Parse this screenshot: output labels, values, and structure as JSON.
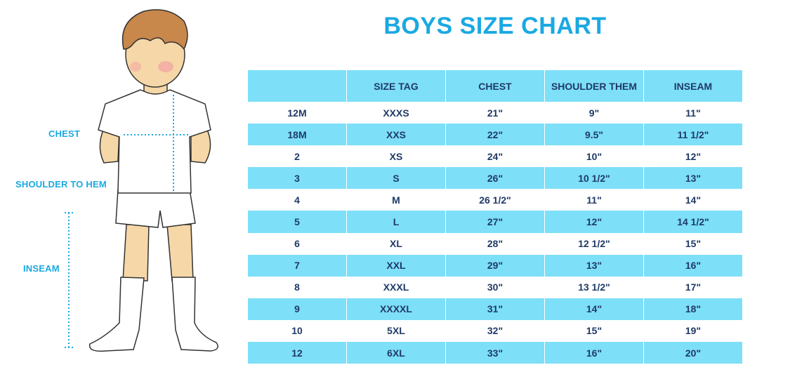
{
  "title": "BOYS SIZE CHART",
  "illustration_labels": {
    "chest": "CHEST",
    "shoulder_to_hem": "SHOULDER TO HEM",
    "inseam": "INSEAM"
  },
  "table": {
    "headers": [
      "",
      "SIZE TAG",
      "CHEST",
      "SHOULDER THEM",
      "INSEAM"
    ],
    "rows": [
      [
        "12M",
        "XXXS",
        "21\"",
        "9\"",
        "11\""
      ],
      [
        "18M",
        "XXS",
        "22\"",
        "9.5\"",
        "11 1/2\""
      ],
      [
        "2",
        "XS",
        "24\"",
        "10\"",
        "12\""
      ],
      [
        "3",
        "S",
        "26\"",
        "10 1/2\"",
        "13\""
      ],
      [
        "4",
        "M",
        "26 1/2\"",
        "11\"",
        "14\""
      ],
      [
        "5",
        "L",
        "27\"",
        "12\"",
        "14 1/2\""
      ],
      [
        "6",
        "XL",
        "28\"",
        "12 1/2\"",
        "15\""
      ],
      [
        "7",
        "XXL",
        "29\"",
        "13\"",
        "16\""
      ],
      [
        "8",
        "XXXL",
        "30\"",
        "13 1/2\"",
        "17\""
      ],
      [
        "9",
        "XXXXL",
        "31\"",
        "14\"",
        "18\""
      ],
      [
        "10",
        "5XL",
        "32\"",
        "15\"",
        "19\""
      ],
      [
        "12",
        "6XL",
        "33\"",
        "16\"",
        "20\""
      ]
    ]
  },
  "colors": {
    "accent": "#1aa9e2",
    "stripe": "#7ddff8",
    "text": "#1f3a66"
  }
}
